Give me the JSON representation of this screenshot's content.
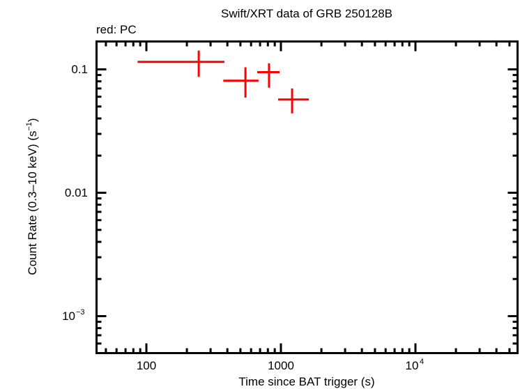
{
  "chart_data": {
    "type": "scatter",
    "title": "Swift/XRT data of GRB 250128B",
    "subtitle": "red: PC",
    "xlabel": "Time since BAT trigger (s)",
    "ylabel": "Count Rate (0.3–10 keV) (s⁻¹)",
    "xscale": "log",
    "yscale": "log",
    "xlim": [
      42,
      57500
    ],
    "ylim": [
      0.0005,
      0.171
    ],
    "x_ticks": [
      {
        "value": 100,
        "label": "100"
      },
      {
        "value": 1000,
        "label": "1000"
      },
      {
        "value": 10000,
        "label": "10⁴"
      }
    ],
    "y_ticks": [
      {
        "value": 0.1,
        "label": "0.1"
      },
      {
        "value": 0.01,
        "label": "0.01"
      },
      {
        "value": 0.001,
        "label": "10⁻³"
      }
    ],
    "grid": false,
    "legend": "none",
    "series": [
      {
        "name": "PC",
        "color": "#ff0000",
        "points": [
          {
            "x": 245,
            "x_lo": 86,
            "x_hi": 380,
            "y": 0.115,
            "y_lo": 0.087,
            "y_hi": 0.142
          },
          {
            "x": 545,
            "x_lo": 373,
            "x_hi": 682,
            "y": 0.081,
            "y_lo": 0.059,
            "y_hi": 0.104
          },
          {
            "x": 816,
            "x_lo": 667,
            "x_hi": 977,
            "y": 0.095,
            "y_lo": 0.071,
            "y_hi": 0.112
          },
          {
            "x": 1211,
            "x_lo": 953,
            "x_hi": 1611,
            "y": 0.057,
            "y_lo": 0.044,
            "y_hi": 0.07
          }
        ]
      }
    ]
  },
  "labels": {
    "title": "Swift/XRT data of GRB 250128B",
    "subtitle": "red: PC",
    "xlabel": "Time since BAT trigger (s)",
    "ylabel_main": "Count Rate (0.3–10 keV) (s",
    "ylabel_sup": "−1",
    "ylabel_end": ")",
    "xtick_100": "100",
    "xtick_1000": "1000",
    "xtick_1e4_base": "10",
    "xtick_1e4_exp": "4",
    "ytick_01": "0.1",
    "ytick_001": "0.01",
    "ytick_1e3_base": "10",
    "ytick_1e3_exp": "−3"
  }
}
